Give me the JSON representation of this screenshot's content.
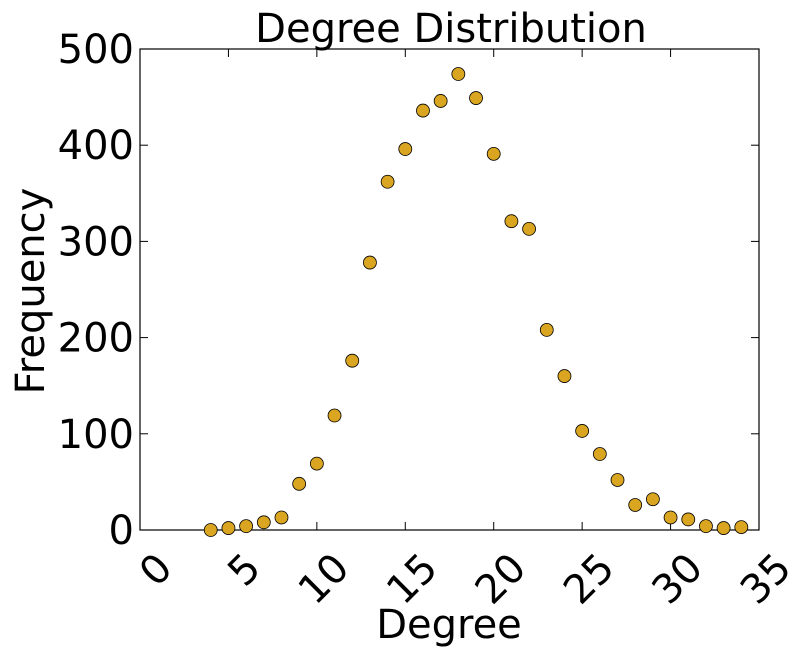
{
  "chart_data": {
    "type": "scatter",
    "title": "Degree Distribution",
    "xlabel": "Degree",
    "ylabel": "Frequency",
    "xlim": [
      0,
      35
    ],
    "ylim": [
      0,
      500
    ],
    "xticks": [
      0,
      5,
      10,
      15,
      20,
      25,
      30,
      35
    ],
    "yticks": [
      0,
      100,
      200,
      300,
      400,
      500
    ],
    "grid": false,
    "marker_color": "#DAA520",
    "marker_edge_color": "#000000",
    "series": [
      {
        "x": [
          4,
          5,
          6,
          7,
          8,
          9,
          10,
          11,
          12,
          13,
          14,
          15,
          16,
          17,
          18,
          19,
          20,
          21,
          22,
          23,
          24,
          25,
          26,
          27,
          28,
          29,
          30,
          31,
          32,
          33,
          34
        ],
        "y": [
          0,
          2,
          4,
          8,
          13,
          48,
          69,
          119,
          176,
          278,
          362,
          396,
          436,
          446,
          474,
          449,
          391,
          321,
          313,
          208,
          160,
          103,
          79,
          52,
          26,
          32,
          13,
          11,
          4,
          2,
          3
        ]
      }
    ]
  }
}
